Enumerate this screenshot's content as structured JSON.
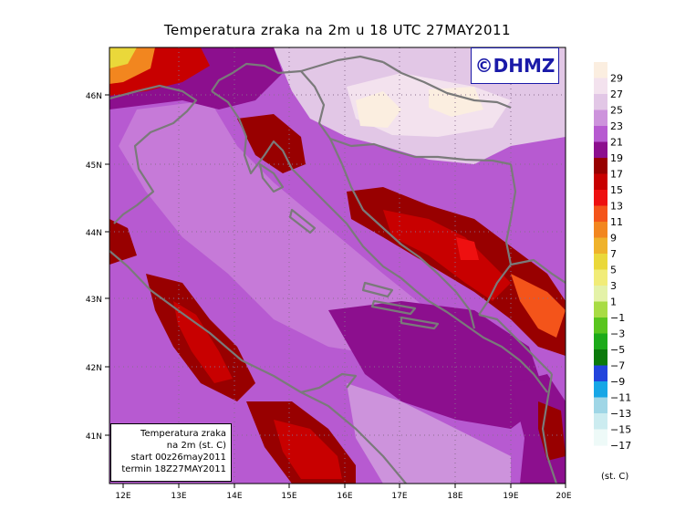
{
  "title": "Temperatura zraka na 2m u 18 UTC 27MAY2011",
  "logo_text": "©DHMZ",
  "info_box": {
    "lines": [
      "Temperatura zraka",
      "na 2m (st. C)",
      "start 00z26may2011",
      "termin 18Z27MAY2011"
    ]
  },
  "axes": {
    "x_labels": [
      "12E",
      "13E",
      "14E",
      "15E",
      "16E",
      "17E",
      "18E",
      "19E",
      "20E"
    ],
    "y_labels": [
      "46N",
      "45N",
      "44N",
      "43N",
      "42N",
      "41N"
    ]
  },
  "legend": {
    "units": "(st. C)",
    "labels": [
      "29",
      "27",
      "25",
      "23",
      "21",
      "19",
      "17",
      "15",
      "13",
      "11",
      "9",
      "7",
      "5",
      "3",
      "1",
      "−1",
      "−3",
      "−5",
      "−7",
      "−9",
      "−11",
      "−13",
      "−15",
      "−17"
    ],
    "colors": [
      "#fbeee0",
      "#f3e2ee",
      "#e2c7e6",
      "#cd93dc",
      "#b75ad1",
      "#8c0f8e",
      "#980000",
      "#c80000",
      "#ee1010",
      "#f4541a",
      "#f2861f",
      "#efb22b",
      "#ead83a",
      "#f1ec78",
      "#e4f2a8",
      "#a8dc44",
      "#59c51e",
      "#1caa19",
      "#0b7a0b",
      "#2244dc",
      "#16a6e6",
      "#9fd6e6",
      "#ccecf0",
      "#eefaf8"
    ]
  }
}
